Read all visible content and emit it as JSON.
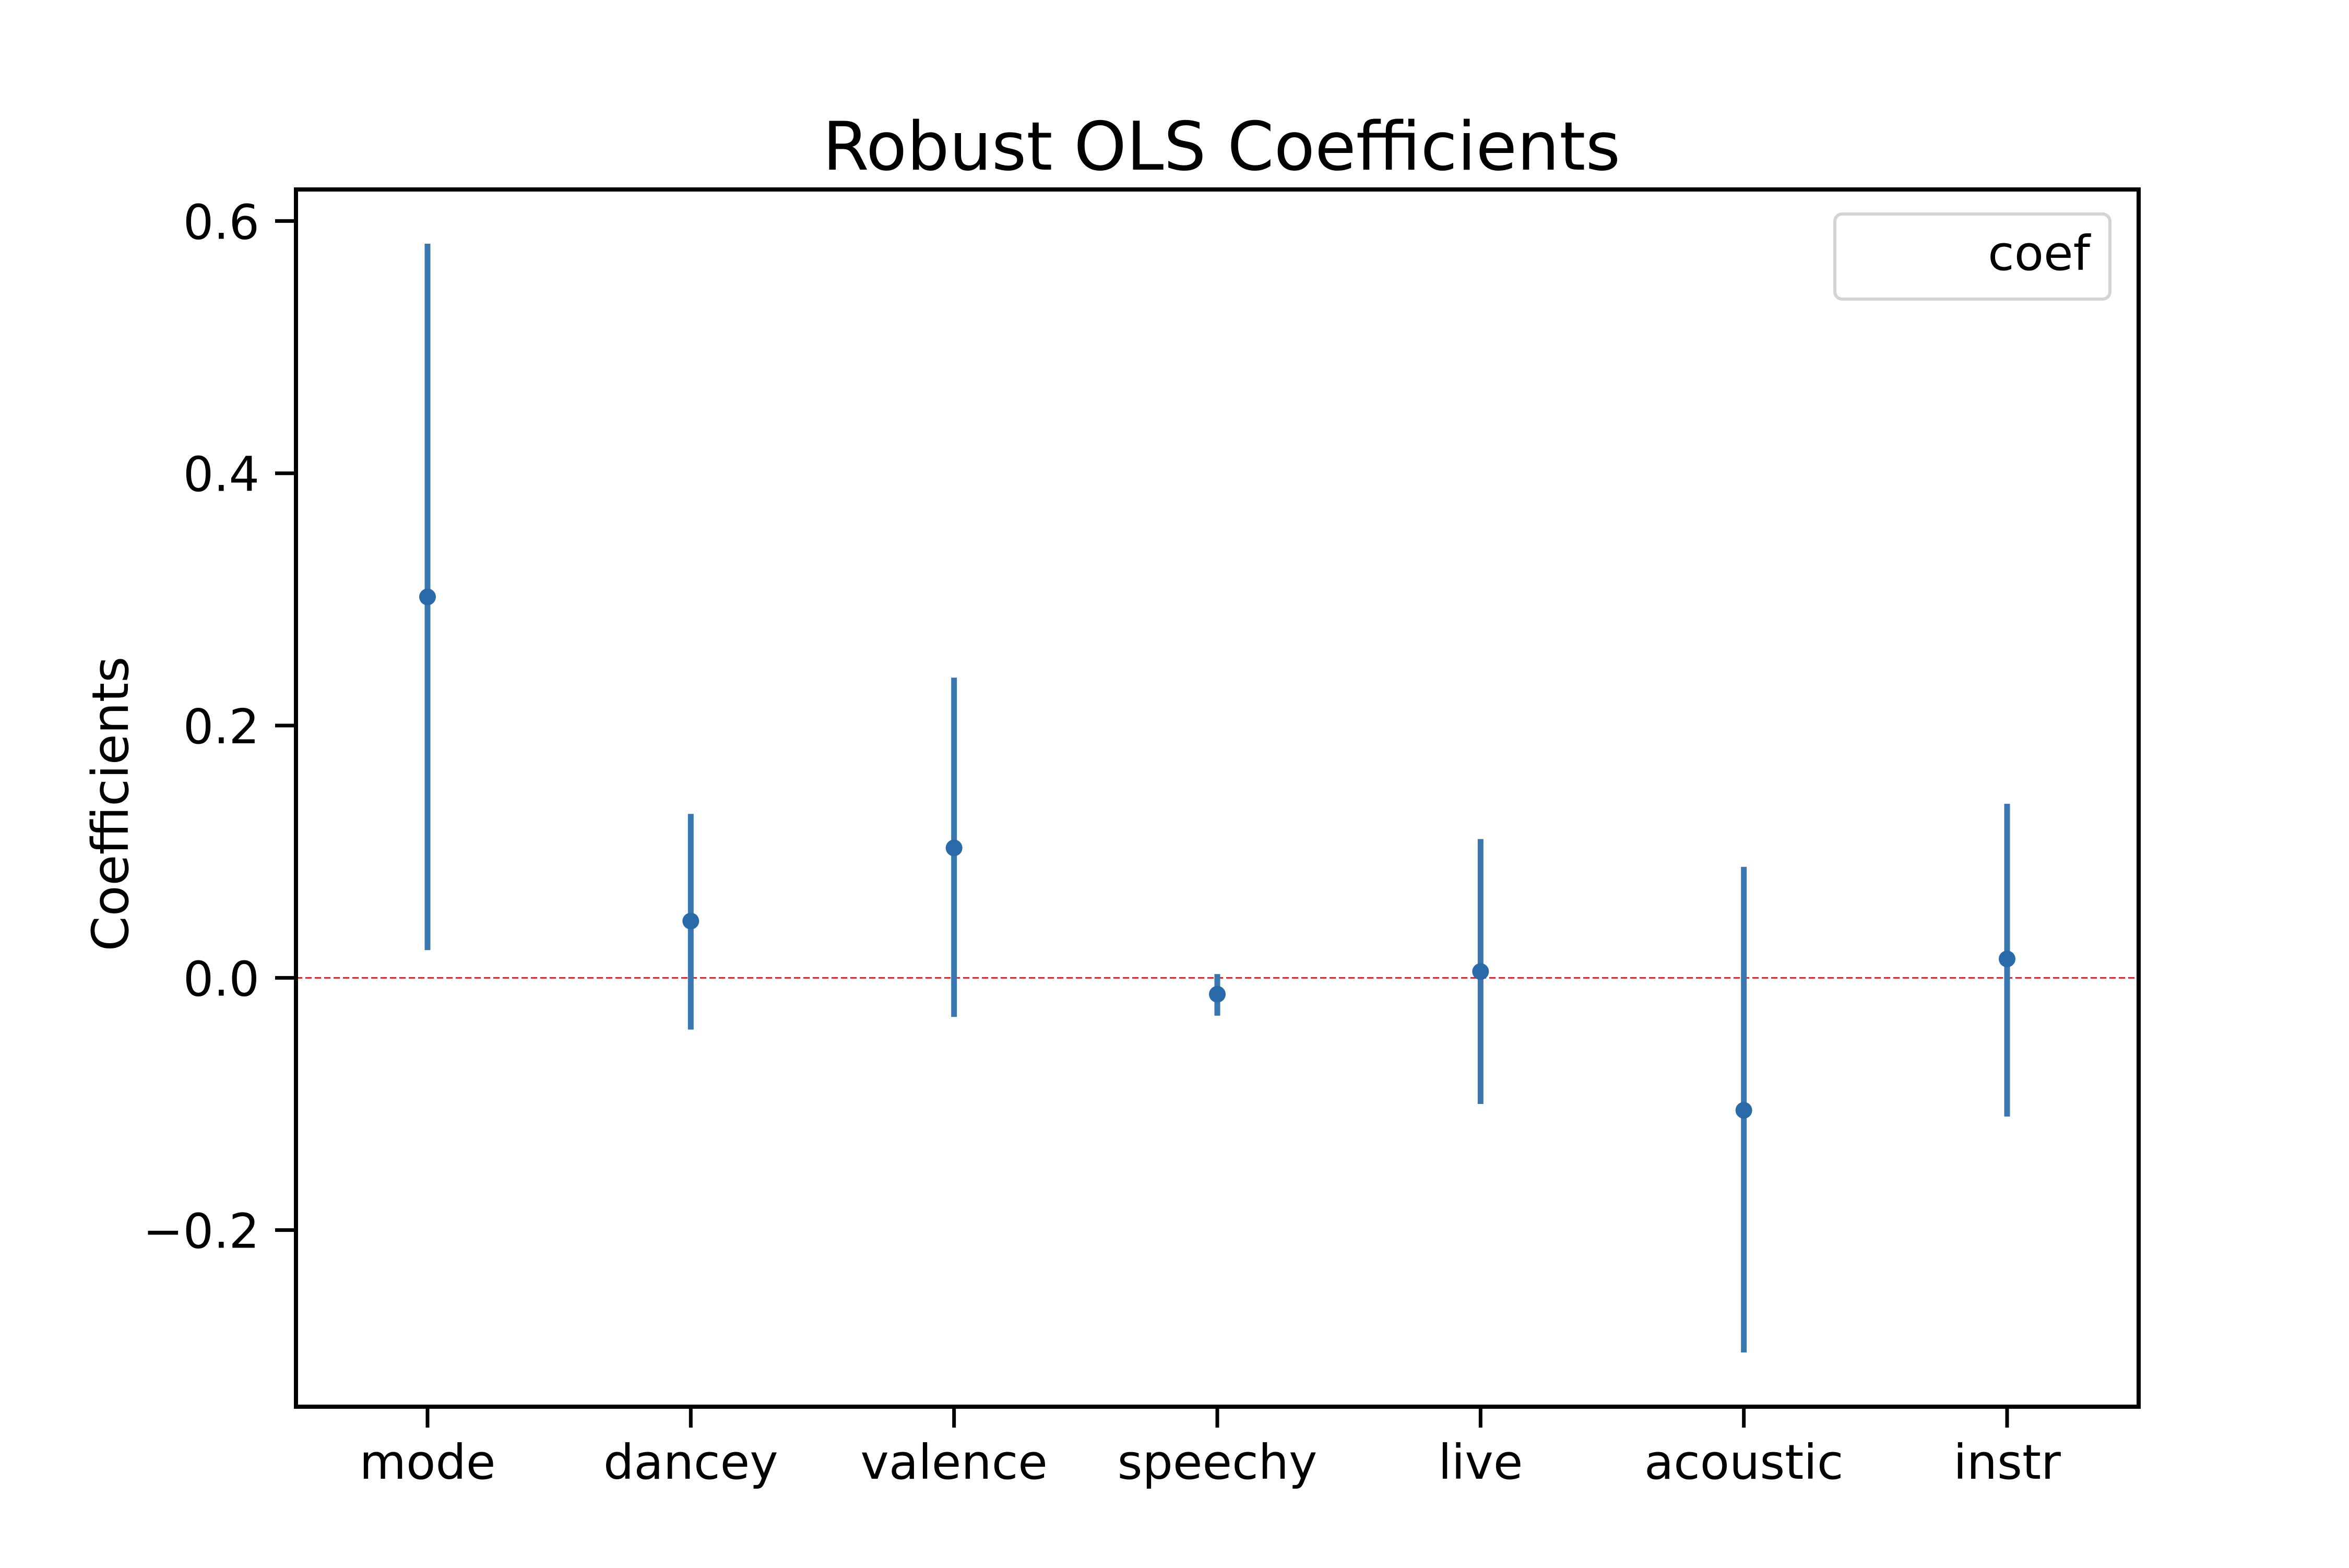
{
  "chart_data": {
    "type": "errorbar",
    "title": "Robust OLS Coefficients",
    "xlabel": "",
    "ylabel": "Coefficients",
    "categories": [
      "mode",
      "dancey",
      "valence",
      "speechy",
      "live",
      "acoustic",
      "instr"
    ],
    "series": [
      {
        "name": "coef",
        "values": [
          0.302,
          0.045,
          0.103,
          -0.013,
          0.005,
          -0.105,
          0.015
        ],
        "lower": [
          0.022,
          -0.041,
          -0.031,
          -0.03,
          -0.1,
          -0.297,
          -0.11
        ],
        "upper": [
          0.582,
          0.13,
          0.238,
          0.003,
          0.11,
          0.088,
          0.138
        ]
      }
    ],
    "ylim": [
      -0.34,
      0.625
    ],
    "yticks": [
      -0.2,
      0.0,
      0.2,
      0.4,
      0.6
    ],
    "ytick_labels": [
      "−0.2",
      "0.0",
      "0.2",
      "0.4",
      "0.6"
    ],
    "reference_line": {
      "y": 0.0,
      "color": "#d62728",
      "style": "dashed"
    },
    "grid": false,
    "legend": {
      "placement": "top-right",
      "entries": [
        "coef"
      ]
    },
    "colors": {
      "series": "#3a76af",
      "marker": "#2b6aa8",
      "axes": "#000000"
    }
  }
}
